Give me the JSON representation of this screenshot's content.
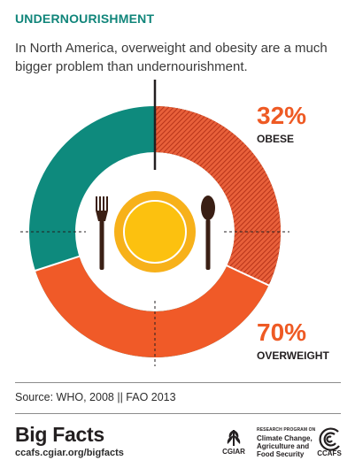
{
  "header": {
    "title": "UNDERNOURISHMENT",
    "subtitle": "In North America, overweight and obesity are a much bigger problem than undernourishment."
  },
  "chart_data": {
    "type": "donut",
    "series": [
      {
        "name": "OBESE",
        "value": 32,
        "label": "32%",
        "color": "#e0532c",
        "pattern": "hatched"
      },
      {
        "name": "OVERWEIGHT",
        "value": 70,
        "label": "70%",
        "color": "#f05a28",
        "pattern": "solid"
      }
    ],
    "remainder_color": "#0e8a7d",
    "annotations": [
      {
        "series": "OBESE",
        "value_text": "32%",
        "label_text": "OBESE"
      },
      {
        "series": "OVERWEIGHT",
        "value_text": "70%",
        "label_text": "OVERWEIGHT"
      }
    ],
    "center_icon": "plate-with-fork-and-spoon-icon"
  },
  "footer": {
    "source": "Source: WHO, 2008 || FAO 2013",
    "brand": "Big Facts",
    "url": "ccafs.cgiar.org/bigfacts",
    "logos": {
      "cgiar_label": "CGIAR",
      "program_small": "RESEARCH PROGRAM ON",
      "program_line1": "Climate Change,",
      "program_line2": "Agriculture and",
      "program_line3": "Food Security",
      "ccafs_label": "CCAFS"
    }
  }
}
